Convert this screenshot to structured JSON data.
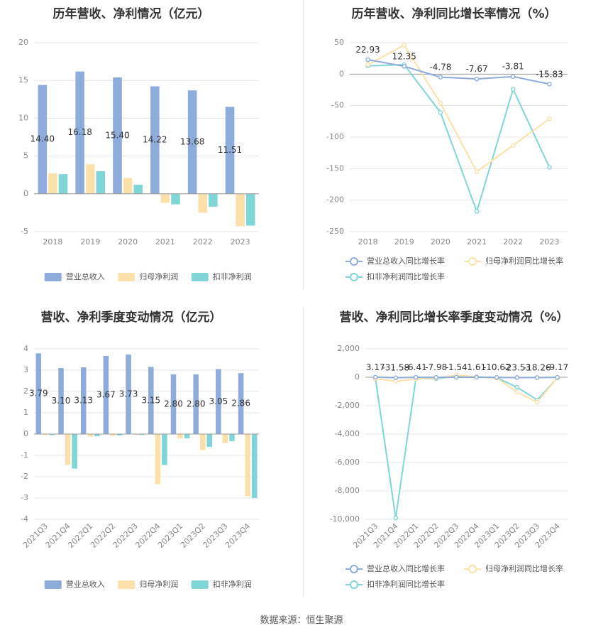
{
  "source": "数据来源：恒生聚源",
  "colors": {
    "revenue": "#8eacdb",
    "net_profit": "#fce0a9",
    "deducted_profit": "#80d6d6",
    "growth_revenue": "#8eacdb",
    "growth_net_profit": "#fce0a9",
    "growth_deducted": "#80d6d6"
  },
  "chart_data": [
    {
      "type": "bar",
      "title": "历年营收、净利情况（亿元）",
      "categories": [
        "2018",
        "2019",
        "2020",
        "2021",
        "2022",
        "2023"
      ],
      "ylim": [
        -5,
        20
      ],
      "yticks": [
        20,
        15,
        10,
        5,
        0,
        -5
      ],
      "series": [
        {
          "name": "营业总收入",
          "values": [
            14.4,
            16.18,
            15.4,
            14.22,
            13.68,
            11.51
          ],
          "labels": [
            "14.40",
            "16.18",
            "15.40",
            "14.22",
            "13.68",
            "11.51"
          ]
        },
        {
          "name": "归母净利润",
          "values": [
            2.7,
            3.9,
            2.1,
            -1.2,
            -2.5,
            -4.3
          ]
        },
        {
          "name": "扣非净利润",
          "values": [
            2.6,
            3.0,
            1.2,
            -1.4,
            -1.7,
            -4.2
          ]
        }
      ],
      "legend": "bottom"
    },
    {
      "type": "line",
      "title": "历年营收、净利同比增长率情况（%）",
      "categories": [
        "2018",
        "2019",
        "2020",
        "2021",
        "2022",
        "2023"
      ],
      "ylim": [
        -250,
        50
      ],
      "yticks": [
        50,
        0,
        -50,
        -100,
        -150,
        -200,
        -250
      ],
      "series": [
        {
          "name": "营业总收入同比增长率",
          "values": [
            22.93,
            12.35,
            -4.78,
            -7.67,
            -3.81,
            -15.83
          ],
          "labels": [
            "22.93",
            "12.35",
            "-4.78",
            "-7.67",
            "-3.81",
            "-15.83"
          ]
        },
        {
          "name": "归母净利润同比增长率",
          "values": [
            15,
            46,
            -46,
            -155,
            -113,
            -71
          ]
        },
        {
          "name": "扣非净利润同比增长率",
          "values": [
            13,
            15,
            -61,
            -218,
            -24,
            -148
          ]
        }
      ],
      "legend": "bottom"
    },
    {
      "type": "bar",
      "title": "营收、净利季度变动情况（亿元）",
      "categories": [
        "2021Q3",
        "2021Q4",
        "2022Q1",
        "2022Q2",
        "2022Q3",
        "2022Q4",
        "2023Q1",
        "2023Q2",
        "2023Q3",
        "2023Q4"
      ],
      "ylim": [
        -4,
        4
      ],
      "yticks": [
        4,
        3,
        2,
        1,
        0,
        -1,
        -2,
        -3,
        -4
      ],
      "series": [
        {
          "name": "营业总收入",
          "values": [
            3.79,
            3.1,
            3.13,
            3.67,
            3.73,
            3.15,
            2.8,
            2.8,
            3.05,
            2.86
          ],
          "labels": [
            "3.79",
            "3.10",
            "3.13",
            "3.67",
            "3.73",
            "3.15",
            "2.80",
            "2.80",
            "3.05",
            "2.86"
          ]
        },
        {
          "name": "归母净利润",
          "values": [
            -0.04,
            -1.45,
            -0.12,
            -0.08,
            -0.03,
            -2.35,
            -0.2,
            -0.75,
            -0.42,
            -2.92
          ]
        },
        {
          "name": "扣非净利润",
          "values": [
            -0.05,
            -1.62,
            -0.1,
            -0.06,
            -0.04,
            -1.45,
            -0.2,
            -0.6,
            -0.33,
            -3.0
          ]
        }
      ],
      "legend": "bottom"
    },
    {
      "type": "line",
      "title": "营收、净利同比增长率季度变动情况（%）",
      "categories": [
        "2021Q3",
        "2021Q4",
        "2022Q1",
        "2022Q2",
        "2022Q3",
        "2022Q4",
        "2023Q1",
        "2023Q2",
        "2023Q3",
        "2023Q4"
      ],
      "ylim": [
        -10000,
        2000
      ],
      "yticks": [
        2000,
        0,
        -2000,
        -4000,
        -6000,
        -8000,
        -10000
      ],
      "ytick_labels": [
        "2,000",
        "0",
        "-2,000",
        "-4,000",
        "-6,000",
        "-8,000",
        "-10,000"
      ],
      "series": [
        {
          "name": "营业总收入同比增长率",
          "values": [
            3.17,
            -31.58,
            -6.41,
            -7.98,
            -1.54,
            1.61,
            -10.62,
            -23.53,
            -18.26,
            -9.17
          ],
          "labels": [
            "3.17",
            "-31.58",
            "-6.41",
            "-7.98",
            "-1.54",
            "1.61",
            "-10.62",
            "-23.53",
            "-18.26",
            "-9.17"
          ]
        },
        {
          "name": "归母净利润同比增长率",
          "values": [
            -100,
            -280,
            -120,
            -60,
            150,
            20,
            -60,
            -1050,
            -1750,
            -30
          ]
        },
        {
          "name": "扣非净利润同比增长率",
          "values": [
            -80,
            -9900,
            -110,
            -100,
            60,
            30,
            -40,
            -700,
            -1600,
            -50
          ]
        }
      ],
      "legend": "bottom"
    }
  ]
}
